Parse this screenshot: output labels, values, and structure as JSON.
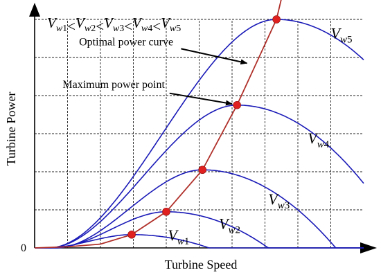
{
  "chart_data": {
    "type": "line",
    "title": "",
    "xlabel": "Turbine Speed",
    "ylabel": "Turbine Power",
    "origin_label": "0",
    "xlim": [
      0,
      10
    ],
    "ylim": [
      0,
      6
    ],
    "grid": true,
    "relation_text": {
      "base": "V",
      "sub": "w",
      "indices": [
        "1",
        "2",
        "3",
        "4",
        "5"
      ],
      "separator": "<"
    },
    "series": [
      {
        "name": "Vw1",
        "peak_speed": 2.95,
        "peak_power": 0.35,
        "width": 2.35,
        "label_pos": [
          4.05,
          0.2
        ]
      },
      {
        "name": "Vw2",
        "peak_speed": 4.0,
        "peak_power": 0.95,
        "width": 3.1,
        "label_pos": [
          5.6,
          0.5
        ]
      },
      {
        "name": "Vw3",
        "peak_speed": 5.1,
        "peak_power": 2.05,
        "width": 4.05,
        "label_pos": [
          7.1,
          1.15
        ]
      },
      {
        "name": "Vw4",
        "peak_speed": 6.15,
        "peak_power": 3.75,
        "width": 5.2,
        "label_pos": [
          8.3,
          2.75
        ]
      },
      {
        "name": "Vw5",
        "peak_speed": 7.35,
        "peak_power": 6.0,
        "width": 6.3,
        "label_pos": [
          9.0,
          5.5
        ]
      }
    ],
    "optimal_curve": {
      "name": "Optimal power curve",
      "color": "#b0302a",
      "points": [
        [
          0,
          0
        ],
        [
          1,
          0.03
        ],
        [
          2,
          0.1
        ],
        [
          2.95,
          0.35
        ],
        [
          4.0,
          0.95
        ],
        [
          5.1,
          2.05
        ],
        [
          6.15,
          3.75
        ],
        [
          7.35,
          6.0
        ],
        [
          7.5,
          6.55
        ]
      ]
    },
    "mpp_points": [
      [
        2.95,
        0.35
      ],
      [
        4.0,
        0.95
      ],
      [
        5.1,
        2.05
      ],
      [
        6.15,
        3.75
      ],
      [
        7.35,
        6.0
      ]
    ],
    "annotations": [
      {
        "text": "Optimal power curve",
        "label_pos": [
          1.35,
          5.32
        ],
        "arrow_from": [
          4.45,
          5.23
        ],
        "arrow_to": [
          6.45,
          4.85
        ]
      },
      {
        "text": "Maximum power point",
        "label_pos": [
          0.85,
          4.2
        ],
        "arrow_from": [
          4.1,
          4.06
        ],
        "arrow_to": [
          6.0,
          3.78
        ]
      }
    ],
    "colors": {
      "curves": "#1a1ab8",
      "optimal": "#b0302a",
      "points": "#e0201f",
      "axes": "#000000",
      "grid": "#222222"
    }
  }
}
